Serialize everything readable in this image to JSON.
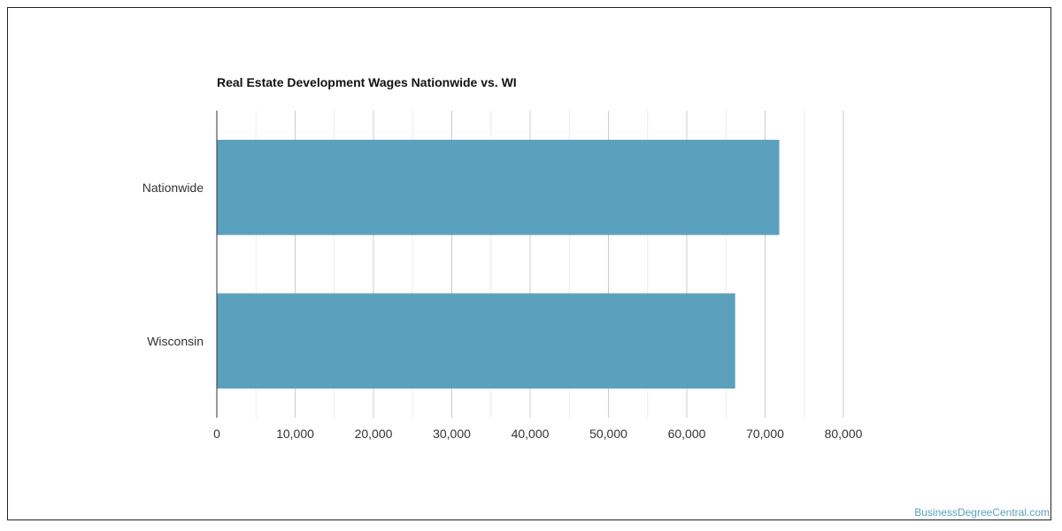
{
  "chart_data": {
    "type": "bar",
    "orientation": "horizontal",
    "title": "Real Estate Development Wages Nationwide vs. WI",
    "categories": [
      "Nationwide",
      "Wisconsin"
    ],
    "values": [
      71810,
      66180
    ],
    "xlim": [
      0,
      80000
    ],
    "xticks": [
      0,
      10000,
      20000,
      30000,
      40000,
      50000,
      60000,
      70000,
      80000
    ],
    "xtick_labels": [
      "0",
      "10,000",
      "20,000",
      "30,000",
      "40,000",
      "50,000",
      "60,000",
      "70,000",
      "80,000"
    ],
    "grid": true,
    "legend": "none",
    "bar_color": "#5ba1be"
  },
  "watermark": "BusinessDegreeCentral.com"
}
